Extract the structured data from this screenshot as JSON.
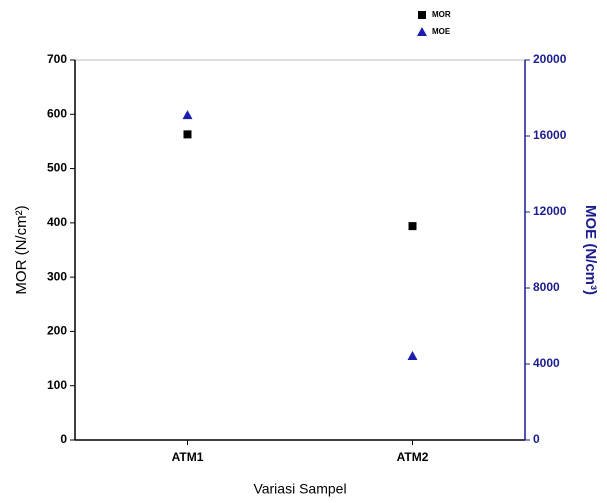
{
  "chart_data": {
    "type": "scatter",
    "categories": [
      "ATM1",
      "ATM2"
    ],
    "xlabel": "Variasi Sampel",
    "ylabel": "MOR (N/cm²)",
    "y2label": "MOE (N/cm³)",
    "ylim": [
      0,
      700
    ],
    "yticks": [
      0,
      100,
      200,
      300,
      400,
      500,
      600,
      700
    ],
    "y2lim": [
      0,
      20000
    ],
    "y2ticks": [
      0,
      4000,
      8000,
      12000,
      16000,
      20000
    ],
    "y2color": "#1c1c8e",
    "legend": "top-right",
    "series": [
      {
        "name": "MOR",
        "color": "#000000",
        "marker": "square",
        "values": [
          563,
          394
        ]
      },
      {
        "name": "MOE",
        "color": "#1c1cb0",
        "marker": "triangle",
        "axis": "y2",
        "values": [
          17100,
          4420
        ]
      }
    ]
  }
}
